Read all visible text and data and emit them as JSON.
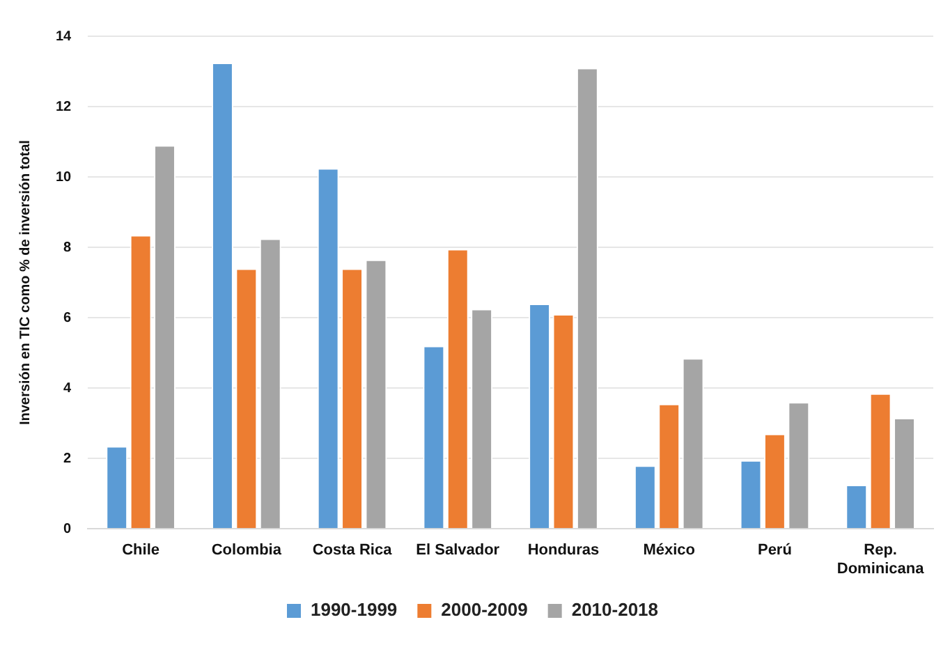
{
  "chart_data": {
    "type": "bar",
    "ylabel": "Inversión en TIC como % de inversión total",
    "categories": [
      "Chile",
      "Colombia",
      "Costa Rica",
      "El Salvador",
      "Honduras",
      "México",
      "Perú",
      "Rep. Dominicana"
    ],
    "series": [
      {
        "name": "1990-1999",
        "color": "#5b9bd5",
        "values": [
          2.35,
          13.25,
          10.25,
          5.2,
          6.4,
          1.8,
          1.95,
          1.25
        ]
      },
      {
        "name": "2000-2009",
        "color": "#ed7d31",
        "values": [
          8.35,
          7.4,
          7.4,
          7.95,
          6.1,
          3.55,
          2.7,
          3.85
        ]
      },
      {
        "name": "2010-2018",
        "color": "#a5a5a5",
        "values": [
          10.9,
          8.25,
          7.65,
          6.25,
          13.1,
          4.85,
          3.6,
          3.15
        ]
      }
    ],
    "ylim": [
      0,
      14
    ],
    "yticks": [
      0,
      2,
      4,
      6,
      8,
      10,
      12,
      14
    ],
    "grid": "y",
    "legend": "bottom"
  }
}
